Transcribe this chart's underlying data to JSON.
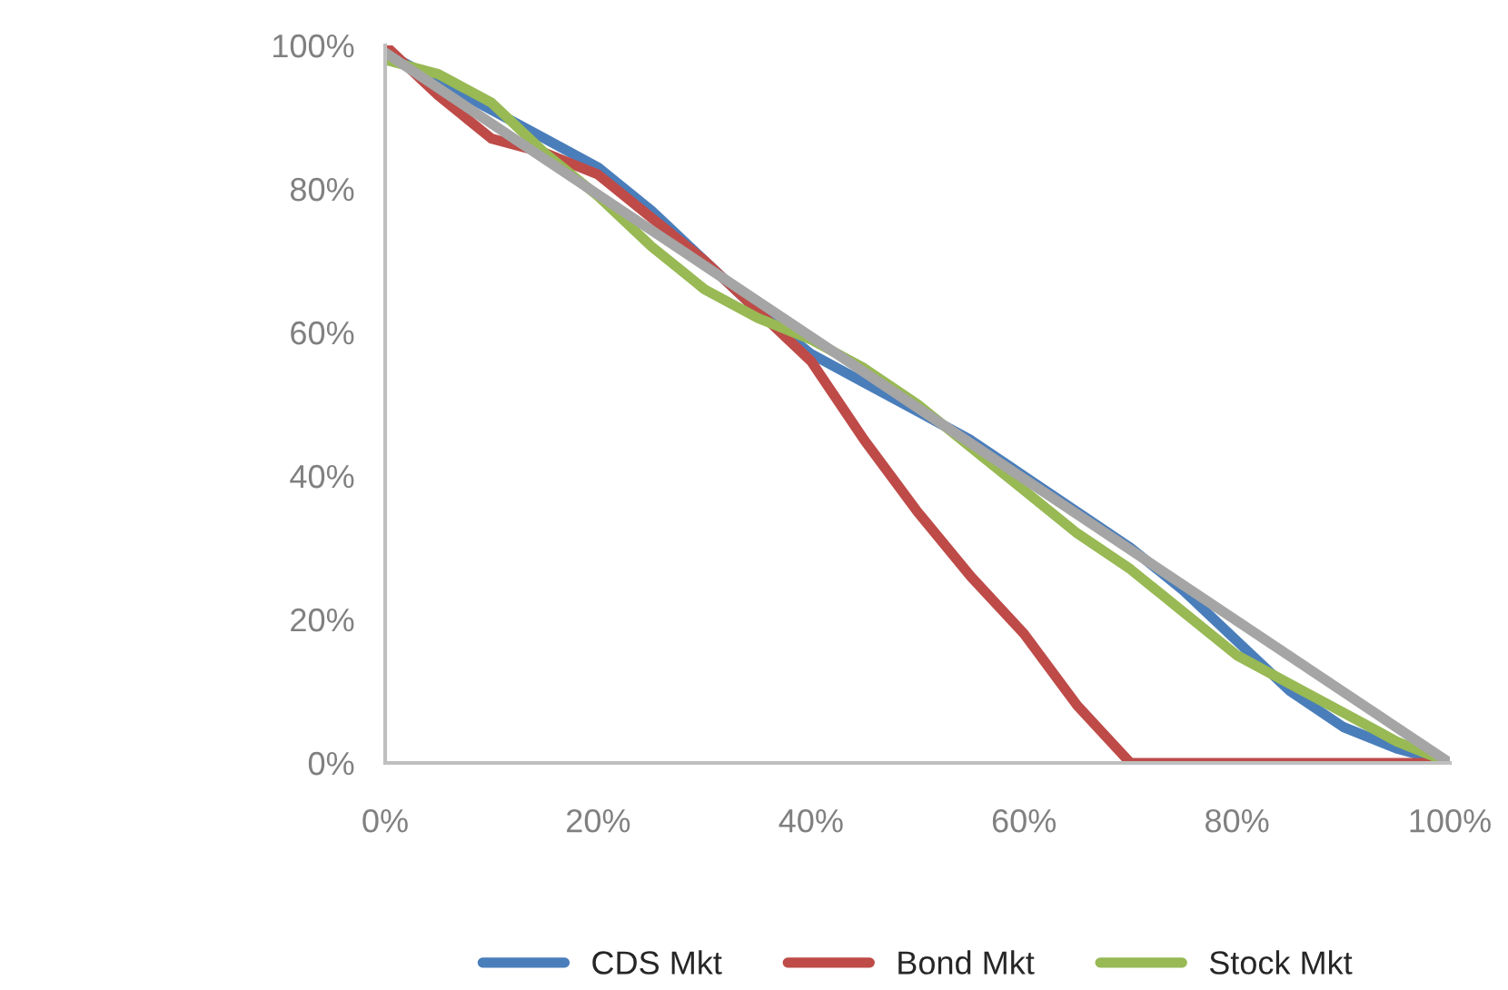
{
  "chart_data": {
    "type": "line",
    "x": [
      0,
      5,
      10,
      15,
      20,
      25,
      30,
      35,
      40,
      45,
      50,
      55,
      60,
      65,
      70,
      75,
      80,
      85,
      90,
      95,
      100
    ],
    "series": [
      {
        "name": "CDS Mkt",
        "color": "#4a7ebb",
        "values": [
          99,
          95,
          91,
          87,
          83,
          77,
          70,
          63,
          57,
          53,
          49,
          45,
          40,
          35,
          30,
          24,
          17,
          10,
          5,
          2,
          0
        ]
      },
      {
        "name": "Bond Mkt",
        "color": "#be4b48",
        "values": [
          100,
          93,
          87,
          85,
          82,
          76,
          70,
          63,
          56,
          45,
          35,
          26,
          18,
          8,
          0,
          0,
          0,
          0,
          0,
          0,
          0
        ]
      },
      {
        "name": "Stock Mkt",
        "color": "#98b954",
        "values": [
          98,
          96,
          92,
          85,
          79,
          72,
          66,
          62,
          59,
          55,
          50,
          44,
          38,
          32,
          27,
          21,
          15,
          11,
          7,
          3,
          0
        ]
      },
      {
        "color": "#a5a5a5",
        "x": [
          0,
          100
        ],
        "values": [
          99,
          0
        ]
      }
    ],
    "xlim": [
      0,
      100
    ],
    "ylim": [
      0,
      100
    ],
    "xticks": [
      {
        "value": 0,
        "label": "0%"
      },
      {
        "value": 20,
        "label": "20%"
      },
      {
        "value": 40,
        "label": "40%"
      },
      {
        "value": 60,
        "label": "60%"
      },
      {
        "value": 80,
        "label": "80%"
      },
      {
        "value": 100,
        "label": "100%"
      }
    ],
    "yticks": [
      {
        "value": 0,
        "label": "0%"
      },
      {
        "value": 20,
        "label": "20%"
      },
      {
        "value": 40,
        "label": "40%"
      },
      {
        "value": 60,
        "label": "60%"
      },
      {
        "value": 80,
        "label": "80%"
      },
      {
        "value": 100,
        "label": "100%"
      }
    ],
    "grid": false,
    "legend": "bottom",
    "marker": "none",
    "line_style": "solid"
  }
}
